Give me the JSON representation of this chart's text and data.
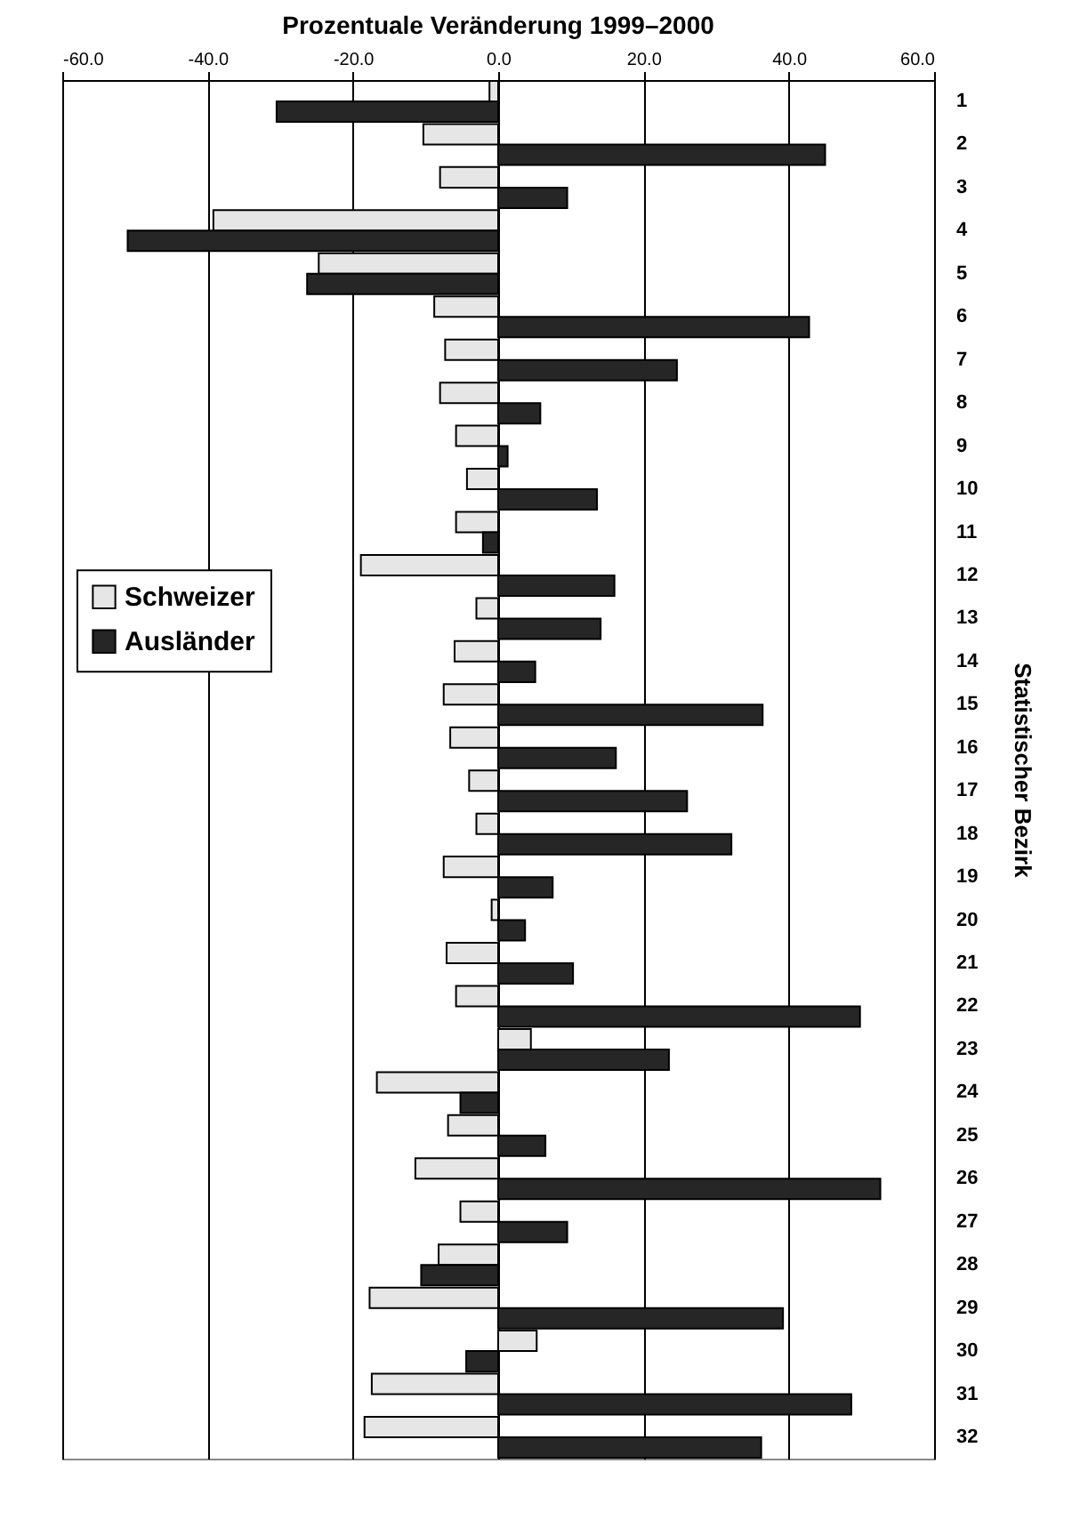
{
  "chart_data": {
    "type": "bar",
    "orientation": "horizontal",
    "title": "Prozentuale Veränderung 1999–2000",
    "ylabel": "Statistischer Bezirk",
    "categories": [
      "1",
      "2",
      "3",
      "4",
      "5",
      "6",
      "7",
      "8",
      "9",
      "10",
      "11",
      "12",
      "13",
      "14",
      "15",
      "16",
      "17",
      "18",
      "19",
      "20",
      "21",
      "22",
      "23",
      "24",
      "25",
      "26",
      "27",
      "28",
      "29",
      "30",
      "31",
      "32"
    ],
    "series": [
      {
        "name": "Schweizer",
        "color": "#e6e6e6",
        "values": [
          -1.2,
          -10.3,
          -8.0,
          -39.2,
          -24.7,
          -8.8,
          -7.3,
          -8.0,
          -5.8,
          -4.3,
          -5.8,
          -18.9,
          -3.0,
          -6.0,
          -7.5,
          -6.6,
          -4.0,
          -3.0,
          -7.5,
          -0.9,
          -7.1,
          -5.8,
          4.5,
          -16.7,
          -6.9,
          -11.4,
          -5.2,
          -8.2,
          -17.7,
          5.3,
          -17.4,
          -18.4
        ]
      },
      {
        "name": "Ausländer",
        "color": "#262626",
        "values": [
          -30.5,
          45.0,
          9.5,
          -51.0,
          -26.3,
          42.8,
          24.6,
          5.8,
          1.3,
          13.6,
          -2.1,
          16.0,
          14.1,
          5.1,
          36.4,
          16.2,
          26.0,
          32.1,
          7.5,
          3.7,
          10.3,
          49.8,
          23.5,
          -5.2,
          6.5,
          52.6,
          9.5,
          -10.6,
          39.2,
          -4.4,
          48.6,
          36.2
        ]
      }
    ],
    "xlim": [
      -60,
      60
    ],
    "xticks": [
      {
        "value": -60,
        "label": "-60.0"
      },
      {
        "value": -40,
        "label": "-40.0"
      },
      {
        "value": -20,
        "label": "-20.0"
      },
      {
        "value": 0,
        "label": "0.0"
      },
      {
        "value": 20,
        "label": "20.0"
      },
      {
        "value": 40,
        "label": "40.0"
      },
      {
        "value": 60,
        "label": "60.0"
      }
    ],
    "grid": "x",
    "legend": "left"
  }
}
